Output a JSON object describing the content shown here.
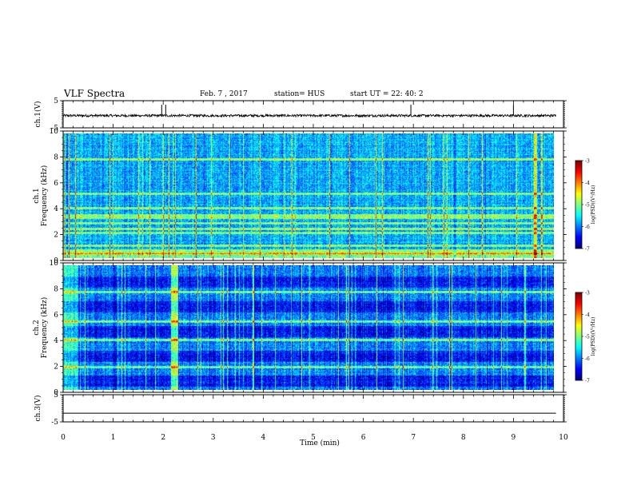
{
  "header": {
    "title": "VLF Spectra",
    "date": "Feb. 7 , 2017",
    "station": "station= HUS",
    "start": "start  UT =   22: 40: 2"
  },
  "chart_data": [
    {
      "type": "line",
      "name": "waveform-ch1",
      "ylabel": "ch.1(V)",
      "ylim": [
        -5,
        5
      ],
      "yticks": [
        "5",
        "-5"
      ],
      "xlim": [
        0,
        10
      ],
      "baseline": -0.5,
      "spike_times": [
        1.97,
        2.05,
        6.95,
        9.0
      ]
    },
    {
      "type": "heatmap",
      "name": "spectrogram-ch1",
      "ylabel": "ch.1\nFrequency  (kHz)",
      "ylim": [
        0,
        10
      ],
      "yticks": [
        "0",
        "2",
        "4",
        "6",
        "8",
        "10"
      ],
      "xlim": [
        0,
        9.85
      ],
      "strong_bands_khz": [
        0.3,
        0.55,
        1.0,
        2.0,
        2.35,
        2.75,
        3.2,
        3.45,
        4.0,
        5.15,
        7.95
      ],
      "colorbar": {
        "label": "log(PSD)(V²/Hz)",
        "range": [
          -7,
          -3
        ],
        "ticks": [
          "-3",
          "-4",
          "-5",
          "-6",
          "-7"
        ]
      }
    },
    {
      "type": "heatmap",
      "name": "spectrogram-ch2",
      "ylabel": "ch.2\nFrequency  (kHz)",
      "ylim": [
        0,
        10
      ],
      "yticks": [
        "0",
        "2",
        "4",
        "6",
        "8",
        "10"
      ],
      "xlim": [
        0,
        9.85
      ],
      "strong_bands_khz": [
        1.8,
        4.0,
        5.5,
        7.9
      ],
      "bright_time_min": [
        2.15,
        2.3
      ],
      "colorbar": {
        "label": "log(PSD)(V²/Hz)",
        "range": [
          -7,
          -3
        ],
        "ticks": [
          "-3",
          "-4",
          "-5",
          "-6",
          "-7"
        ]
      }
    },
    {
      "type": "line",
      "name": "waveform-ch3",
      "ylabel": "ch.3(V)",
      "ylim": [
        -5,
        5
      ],
      "yticks": [
        "5",
        "-5"
      ],
      "xlim": [
        0,
        10
      ],
      "baseline": -1.8
    }
  ],
  "xaxis": {
    "label": "Time  (min)",
    "ticks": [
      "0",
      "1",
      "2",
      "3",
      "4",
      "5",
      "6",
      "7",
      "8",
      "9",
      "10"
    ],
    "range": [
      0,
      10
    ]
  }
}
